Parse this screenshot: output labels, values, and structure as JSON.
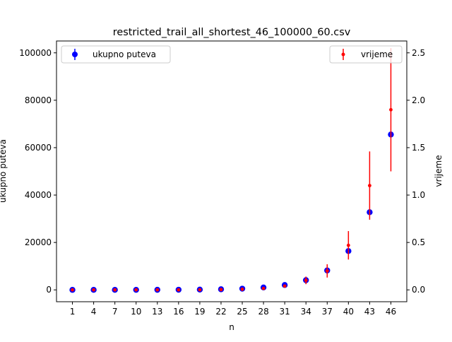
{
  "chart_data": {
    "type": "scatter",
    "title": "restricted_trail_all_shortest_46_100000_60.csv",
    "xlabel": "n",
    "ylabel": "ukupno puteva",
    "y2label": "vrijeme",
    "x": [
      1,
      4,
      7,
      10,
      13,
      16,
      19,
      22,
      25,
      28,
      31,
      34,
      37,
      40,
      43,
      46
    ],
    "xlim": [
      -1.25,
      48.25
    ],
    "ylim": [
      -5000,
      105000
    ],
    "y2lim": [
      -0.125,
      2.625
    ],
    "xticks": [
      "1",
      "4",
      "7",
      "10",
      "13",
      "16",
      "19",
      "22",
      "25",
      "28",
      "31",
      "34",
      "37",
      "40",
      "43",
      "46"
    ],
    "yticks": [
      "0",
      "20000",
      "40000",
      "60000",
      "80000",
      "100000"
    ],
    "y2ticks": [
      "0.0",
      "0.5",
      "1.0",
      "1.5",
      "2.0",
      "2.5"
    ],
    "grid": false,
    "series": [
      {
        "name": "ukupno puteva",
        "axis": "left",
        "color": "#0000ff",
        "values": [
          1,
          3,
          7,
          15,
          31,
          63,
          127,
          255,
          511,
          1023,
          2047,
          4095,
          8191,
          16383,
          32767,
          65535
        ],
        "error": [
          0,
          0,
          0,
          0,
          0,
          0,
          0,
          0,
          0,
          0,
          0,
          0,
          0,
          0,
          0,
          0
        ],
        "legend_position": "upper left"
      },
      {
        "name": "vrijeme",
        "axis": "right",
        "color": "#ff0000",
        "values": [
          0.0,
          0.0,
          0.0,
          0.0,
          0.0,
          0.0,
          0.001,
          0.003,
          0.007,
          0.015,
          0.04,
          0.1,
          0.2,
          0.47,
          1.1,
          1.9
        ],
        "error": [
          0.0,
          0.0,
          0.0,
          0.0,
          0.0,
          0.0,
          0.001,
          0.002,
          0.004,
          0.007,
          0.012,
          0.04,
          0.07,
          0.15,
          0.36,
          0.65
        ],
        "legend_position": "upper right"
      }
    ]
  }
}
